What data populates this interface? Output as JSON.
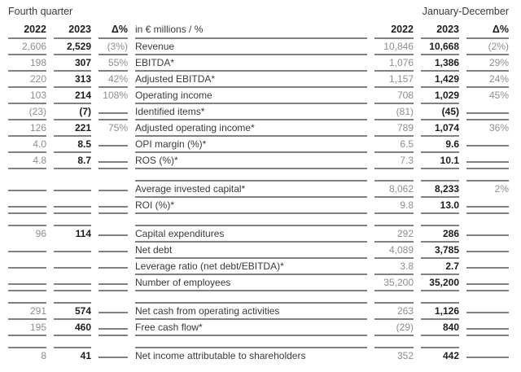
{
  "header": {
    "left_period": "Fourth quarter",
    "right_period": "January-December",
    "year_2022": "2022",
    "year_2023": "2023",
    "delta": "Δ%",
    "unit_label": "in € millions / %"
  },
  "colors": {
    "value_gray": "#8e8e8e",
    "value_bold": "#1d1d1b",
    "label_text": "#3a3a39",
    "rule": "#818181"
  },
  "groups": [
    {
      "rows": [
        {
          "q22": "2,606",
          "q23": "2,529",
          "qd": "(3%)",
          "label": "Revenue",
          "y22": "10,846",
          "y23": "10,668",
          "yd": "(2%)"
        },
        {
          "q22": "198",
          "q23": "307",
          "qd": "55%",
          "label": "EBITDA*",
          "y22": "1,076",
          "y23": "1,386",
          "yd": "29%"
        },
        {
          "q22": "220",
          "q23": "313",
          "qd": "42%",
          "label": "Adjusted EBITDA*",
          "y22": "1,157",
          "y23": "1,429",
          "yd": "24%"
        },
        {
          "q22": "103",
          "q23": "214",
          "qd": "108%",
          "label": "Operating income",
          "y22": "708",
          "y23": "1,029",
          "yd": "45%"
        },
        {
          "q22": "(23)",
          "q23": "(7)",
          "qd": "",
          "label": "Identified items*",
          "y22": "(81)",
          "y23": "(45)",
          "yd": ""
        },
        {
          "q22": "126",
          "q23": "221",
          "qd": "75%",
          "label": "Adjusted operating income*",
          "y22": "789",
          "y23": "1,074",
          "yd": "36%"
        },
        {
          "q22": "4.0",
          "q23": "8.5",
          "qd": "",
          "label": "OPI margin (%)*",
          "y22": "6.5",
          "y23": "9.6",
          "yd": ""
        },
        {
          "q22": "4.8",
          "q23": "8.7",
          "qd": "",
          "label": "ROS (%)*",
          "y22": "7.3",
          "y23": "10.1",
          "yd": ""
        }
      ]
    },
    {
      "rows": [
        {
          "q22": "",
          "q23": "",
          "qd": "",
          "label": "Average invested capital*",
          "y22": "8,062",
          "y23": "8,233",
          "yd": "2%"
        },
        {
          "q22": "",
          "q23": "",
          "qd": "",
          "label": "ROI (%)*",
          "y22": "9.8",
          "y23": "13.0",
          "yd": ""
        }
      ]
    },
    {
      "rows": [
        {
          "q22": "96",
          "q23": "114",
          "qd": "",
          "label": "Capital expenditures",
          "y22": "292",
          "y23": "286",
          "yd": ""
        },
        {
          "q22": "",
          "q23": "",
          "qd": "",
          "label": "Net debt",
          "y22": "4,089",
          "y23": "3,785",
          "yd": ""
        },
        {
          "q22": "",
          "q23": "",
          "qd": "",
          "label": "Leverage ratio (net debt/EBITDA)*",
          "y22": "3.8",
          "y23": "2.7",
          "yd": ""
        },
        {
          "q22": "",
          "q23": "",
          "qd": "",
          "label": "Number of employees",
          "y22": "35,200",
          "y23": "35,200",
          "yd": ""
        }
      ]
    },
    {
      "rows": [
        {
          "q22": "291",
          "q23": "574",
          "qd": "",
          "label": "Net cash from operating activities",
          "y22": "263",
          "y23": "1,126",
          "yd": ""
        },
        {
          "q22": "195",
          "q23": "460",
          "qd": "",
          "label": "Free cash flow*",
          "y22": "(29)",
          "y23": "840",
          "yd": ""
        }
      ]
    },
    {
      "rows": [
        {
          "q22": "8",
          "q23": "41",
          "qd": "",
          "label": "Net income attributable to shareholders",
          "y22": "352",
          "y23": "442",
          "yd": ""
        }
      ]
    }
  ]
}
